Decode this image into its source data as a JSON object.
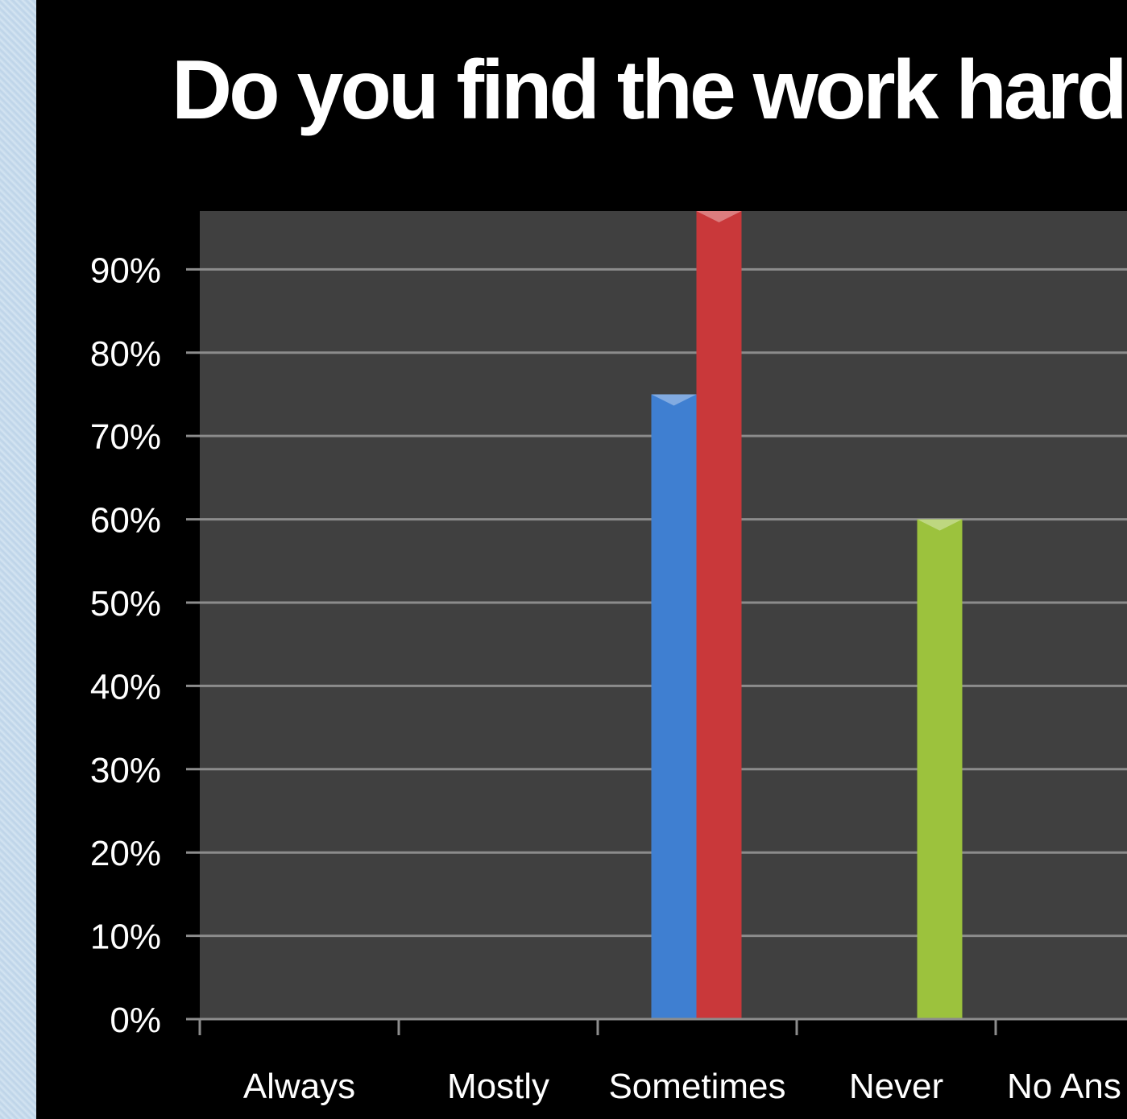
{
  "colors": {
    "background": "#000000",
    "plot_area": "#404040",
    "gridline": "#8c8c8c",
    "text": "#ffffff"
  },
  "chart_data": {
    "type": "bar",
    "title": "Do you find the work hard?",
    "categories": [
      "Always",
      "Mostly",
      "Sometimes",
      "Never",
      "No Ans"
    ],
    "series": [
      {
        "color": "#3f7fd1",
        "values": [
          0,
          0,
          75,
          0,
          0
        ]
      },
      {
        "color": "#c9383a",
        "values": [
          0,
          0,
          97,
          0,
          0
        ]
      },
      {
        "color": "#9cc23d",
        "values": [
          0,
          0,
          0,
          60,
          0
        ]
      }
    ],
    "y_ticks": [
      "0%",
      "10%",
      "20%",
      "30%",
      "40%",
      "50%",
      "60%",
      "70%",
      "80%",
      "90%"
    ],
    "ylim": [
      0,
      97
    ],
    "grid": true,
    "legend": "none"
  }
}
